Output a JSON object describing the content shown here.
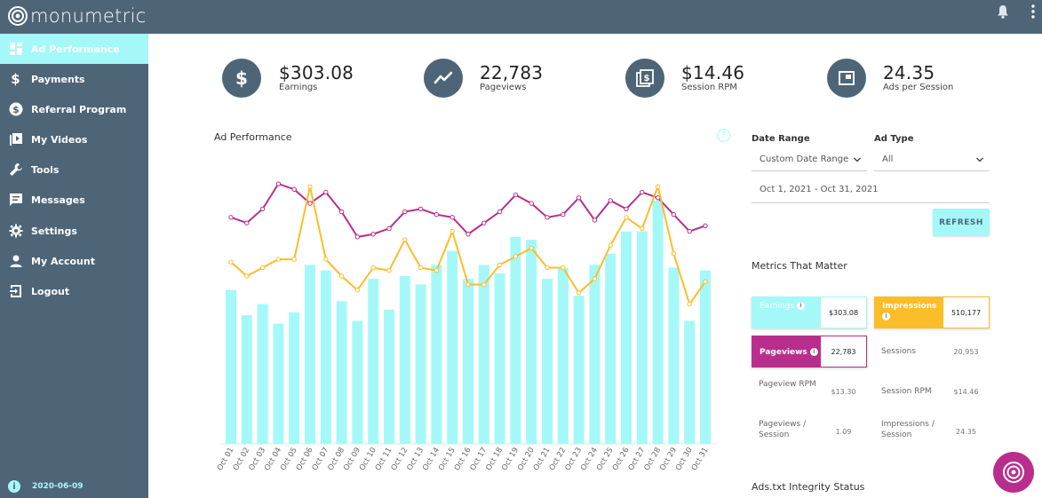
{
  "app": {
    "logo_text": "monumetric"
  },
  "header": {
    "icons": [
      "bell-icon",
      "kebab-menu-icon"
    ]
  },
  "sidebar": {
    "items": [
      {
        "label": "Ad Performance",
        "icon": "dashboard-icon",
        "active": true
      },
      {
        "label": "Payments",
        "icon": "dollar-icon"
      },
      {
        "label": "Referral Program",
        "icon": "dollar-circle-icon"
      },
      {
        "label": "My Videos",
        "icon": "video-library-icon"
      },
      {
        "label": "Tools",
        "icon": "wrench-icon"
      },
      {
        "label": "Messages",
        "icon": "message-icon"
      },
      {
        "label": "Settings",
        "icon": "gear-icon"
      },
      {
        "label": "My Account",
        "icon": "person-icon"
      },
      {
        "label": "Logout",
        "icon": "logout-icon"
      }
    ],
    "footer": {
      "info": "i",
      "version": "2020-06-09"
    }
  },
  "stats": [
    {
      "value": "$303.08",
      "label": "Earnings",
      "icon": "dollar-icon"
    },
    {
      "value": "22,783",
      "label": "Pageviews",
      "icon": "trend-line-icon"
    },
    {
      "value": "$14.46",
      "label": "Session RPM",
      "icon": "money-stack-icon"
    },
    {
      "value": "24.35",
      "label": "Ads per Session",
      "icon": "ad-frame-icon"
    }
  ],
  "chart": {
    "title": "Ad Performance",
    "help": "?"
  },
  "filters": {
    "date_range_label": "Date Range",
    "date_range_value": "Custom Date Range",
    "ad_type_label": "Ad Type",
    "ad_type_value": "All",
    "date_value": "Oct 1, 2021 - Oct 31, 2021",
    "refresh_label": "REFRESH"
  },
  "metrics_title": "Metrics That Matter",
  "metrics": {
    "earnings": {
      "label": "Earnings",
      "value": "$303.08"
    },
    "impressions": {
      "label": "Impressions",
      "value": "510,177"
    },
    "pageviews": {
      "label": "Pageviews",
      "value": "22,783"
    },
    "sessions": {
      "label": "Sessions",
      "value": "20,953"
    },
    "pageview_rpm": {
      "label": "Pageview RPM",
      "value": "$13.30"
    },
    "session_rpm": {
      "label": "Session RPM",
      "value": "$14.46"
    },
    "pageviews_per_session": {
      "label": "Pageviews / Session",
      "value": "1.09"
    },
    "impressions_per_session": {
      "label": "Impressions / Session",
      "value": "24.35"
    }
  },
  "ads_txt_title": "Ads.txt Integrity Status",
  "colors": {
    "sidebar": "#4e6578",
    "accent_cyan": "#a5f8f8",
    "bar": "#a5f8f8",
    "line_magenta": "#b92e8c",
    "line_yellow": "#fbbd29"
  },
  "chart_data": {
    "type": "bar",
    "categories": [
      "Oct 01",
      "Oct 02",
      "Oct 03",
      "Oct 04",
      "Oct 05",
      "Oct 06",
      "Oct 07",
      "Oct 08",
      "Oct 09",
      "Oct 10",
      "Oct 11",
      "Oct 12",
      "Oct 13",
      "Oct 14",
      "Oct 15",
      "Oct 16",
      "Oct 17",
      "Oct 18",
      "Oct 19",
      "Oct 20",
      "Oct 21",
      "Oct 22",
      "Oct 23",
      "Oct 24",
      "Oct 25",
      "Oct 26",
      "Oct 27",
      "Oct 28",
      "Oct 29",
      "Oct 30",
      "Oct 31"
    ],
    "series": [
      {
        "name": "Pageviews",
        "kind": "bar",
        "values": [
          55,
          46,
          50,
          43,
          47,
          64,
          62,
          51,
          44,
          59,
          48,
          60,
          57,
          64,
          69,
          59,
          64,
          61,
          74,
          73,
          59,
          63,
          53,
          64,
          68,
          76,
          76,
          87,
          63,
          44,
          62
        ]
      },
      {
        "name": "Earnings",
        "kind": "line",
        "values": [
          81,
          79,
          84,
          93,
          91,
          86,
          90,
          83,
          74,
          75,
          77,
          83,
          84,
          82,
          81,
          75,
          79,
          83,
          89,
          86,
          81,
          82,
          88,
          80,
          87,
          84,
          90,
          88,
          82,
          76,
          78
        ]
      },
      {
        "name": "Impressions",
        "kind": "line",
        "values": [
          65,
          60,
          63,
          66,
          66,
          92,
          66,
          60,
          55,
          63,
          62,
          73,
          63,
          62,
          76,
          57,
          57,
          64,
          67,
          70,
          63,
          63,
          54,
          59,
          71,
          81,
          77,
          92,
          68,
          50,
          58
        ]
      }
    ],
    "ylim": [
      0,
      100
    ],
    "grid": false,
    "legend": "none"
  }
}
